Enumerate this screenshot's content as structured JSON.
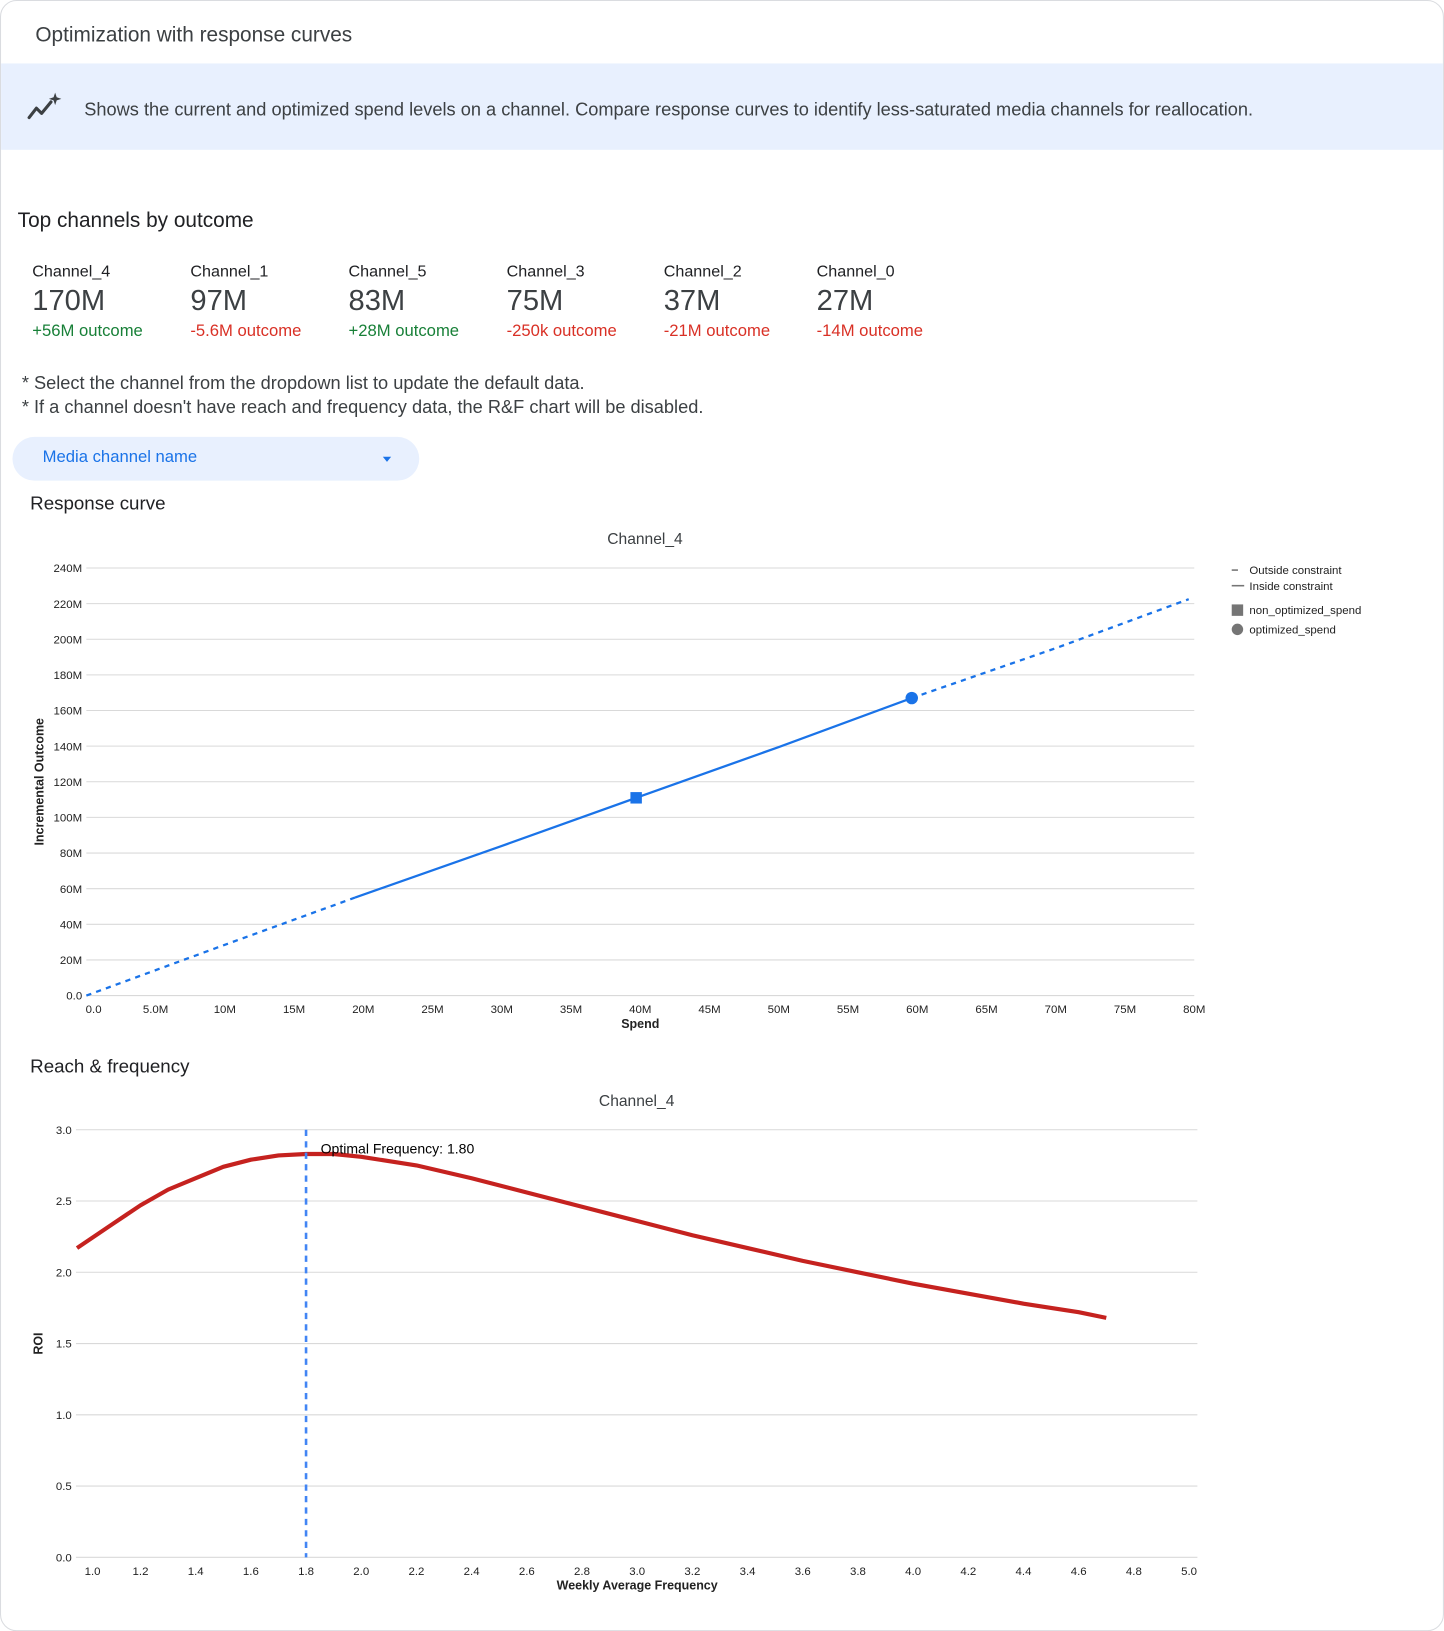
{
  "header": {
    "title": "Optimization with response curves"
  },
  "banner": {
    "icon": "sparkle-trend-icon",
    "text": "Shows the current and optimized spend levels on a channel. Compare response curves to identify less-saturated media channels for reallocation."
  },
  "top_channels": {
    "title": "Top channels by outcome",
    "items": [
      {
        "name": "Channel_4",
        "value": "170M",
        "delta": "+56M outcome",
        "positive": true
      },
      {
        "name": "Channel_1",
        "value": "97M",
        "delta": "-5.6M outcome",
        "positive": false
      },
      {
        "name": "Channel_5",
        "value": "83M",
        "delta": "+28M outcome",
        "positive": true
      },
      {
        "name": "Channel_3",
        "value": "75M",
        "delta": "-250k outcome",
        "positive": false
      },
      {
        "name": "Channel_2",
        "value": "37M",
        "delta": "-21M outcome",
        "positive": false
      },
      {
        "name": "Channel_0",
        "value": "27M",
        "delta": "-14M outcome",
        "positive": false
      }
    ]
  },
  "notes": [
    "* Select the channel from the dropdown list to update the default data.",
    "* If a channel doesn't have reach and frequency data, the R&F chart will be disabled."
  ],
  "dropdown": {
    "label": "Media channel name",
    "icon": "caret-down-icon"
  },
  "colors": {
    "positive": "#188038",
    "negative": "#d93025",
    "accent": "#1a73e8",
    "curve": "#1a73e8",
    "rf_curve": "#c5221f",
    "optimal_line": "#4285f4",
    "banner_bg": "#e8f0fe"
  },
  "response_section": {
    "title": "Response curve"
  },
  "rf_section": {
    "title": "Reach & frequency"
  },
  "chart_data": [
    {
      "type": "line",
      "title": "Channel_4",
      "xlabel": "Spend",
      "ylabel": "Incremental Outcome",
      "xlim": [
        0,
        80000000
      ],
      "ylim": [
        0,
        240000000
      ],
      "grid": true,
      "legend_placement": "right",
      "x_ticks": [
        "0.0",
        "5.0M",
        "10M",
        "15M",
        "20M",
        "25M",
        "30M",
        "35M",
        "40M",
        "45M",
        "50M",
        "55M",
        "60M",
        "65M",
        "70M",
        "75M",
        "80M"
      ],
      "y_ticks": [
        "0.0",
        "20M",
        "40M",
        "60M",
        "80M",
        "100M",
        "120M",
        "140M",
        "160M",
        "180M",
        "200M",
        "220M",
        "240M"
      ],
      "legend": [
        "Outside constraint",
        "Inside constraint",
        "non_optimized_spend",
        "optimized_spend"
      ],
      "series": [
        {
          "name": "Outside constraint",
          "x": [
            0,
            10000000,
            19400000
          ],
          "y": [
            0,
            28500000,
            55000000
          ]
        },
        {
          "name": "Inside constraint",
          "x": [
            19400000,
            30000000,
            39700000,
            50000000,
            59600000
          ],
          "y": [
            55000000,
            84000000,
            111000000,
            139500000,
            167000000
          ]
        },
        {
          "name": "Outside constraint",
          "x": [
            59600000,
            70000000,
            79600000
          ],
          "y": [
            167000000,
            195000000,
            222500000
          ]
        }
      ],
      "points": [
        {
          "name": "non_optimized_spend",
          "x": 39700000,
          "y": 111000000,
          "shape": "square"
        },
        {
          "name": "optimized_spend",
          "x": 59600000,
          "y": 167000000,
          "shape": "circle"
        }
      ]
    },
    {
      "type": "line",
      "title": "Channel_4",
      "xlabel": "Weekly Average Frequency",
      "ylabel": "ROI",
      "xlim": [
        1.0,
        5.0
      ],
      "ylim": [
        0,
        3.0
      ],
      "grid": true,
      "x_ticks": [
        "1.0",
        "1.2",
        "1.4",
        "1.6",
        "1.8",
        "2.0",
        "2.2",
        "2.4",
        "2.6",
        "2.8",
        "3.0",
        "3.2",
        "3.4",
        "3.6",
        "3.8",
        "4.0",
        "4.2",
        "4.4",
        "4.6",
        "4.8",
        "5.0"
      ],
      "y_ticks": [
        "0.0",
        "0.5",
        "1.0",
        "1.5",
        "2.0",
        "2.5",
        "3.0"
      ],
      "series": [
        {
          "x": [
            0.97,
            1.1,
            1.2,
            1.3,
            1.4,
            1.5,
            1.6,
            1.7,
            1.8,
            1.9,
            2.0,
            2.2,
            2.4,
            2.6,
            2.8,
            3.0,
            3.2,
            3.4,
            3.6,
            3.8,
            4.0,
            4.2,
            4.4,
            4.6,
            4.7
          ],
          "y": [
            2.17,
            2.34,
            2.47,
            2.58,
            2.66,
            2.74,
            2.79,
            2.82,
            2.83,
            2.83,
            2.81,
            2.75,
            2.66,
            2.56,
            2.46,
            2.36,
            2.26,
            2.17,
            2.08,
            2.0,
            1.92,
            1.85,
            1.78,
            1.72,
            1.68
          ]
        }
      ],
      "optimal_frequency": 1.8,
      "annotation": "Optimal Frequency: 1.80"
    }
  ]
}
